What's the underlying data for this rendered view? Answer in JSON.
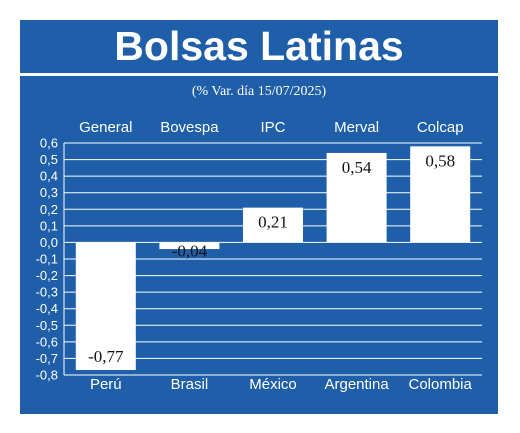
{
  "title": "Bolsas Latinas",
  "subtitle": "(% Var. día 15/07/2025)",
  "colors": {
    "background": "#1f5ea8",
    "bar": "#ffffff",
    "grid": "#ffffff",
    "text": "#ffffff",
    "label_text": "#111111"
  },
  "chart_data": {
    "type": "bar",
    "title": "Bolsas Latinas",
    "subtitle": "(% Var. día 15/07/2025)",
    "index_names": [
      "General",
      "Bovespa",
      "IPC",
      "Merval",
      "Colcap"
    ],
    "categories": [
      "Perú",
      "Brasil",
      "México",
      "Argentina",
      "Colombia"
    ],
    "values": [
      -0.77,
      -0.04,
      0.21,
      0.54,
      0.58
    ],
    "value_labels": [
      "-0,77",
      "-0,04",
      "0,21",
      "0,54",
      "0,58"
    ],
    "ylim": [
      -0.8,
      0.6
    ],
    "yticks": [
      "0,6",
      "0,5",
      "0,4",
      "0,3",
      "0,2",
      "0,1",
      "0,0",
      "-0,1",
      "-0,2",
      "-0,3",
      "-0,4",
      "-0,5",
      "-0,6",
      "-0,7",
      "-0,8"
    ],
    "ytick_values": [
      0.6,
      0.5,
      0.4,
      0.3,
      0.2,
      0.1,
      0.0,
      -0.1,
      -0.2,
      -0.3,
      -0.4,
      -0.5,
      -0.6,
      -0.7,
      -0.8
    ],
    "grid": true,
    "xlabel": "",
    "ylabel": ""
  }
}
